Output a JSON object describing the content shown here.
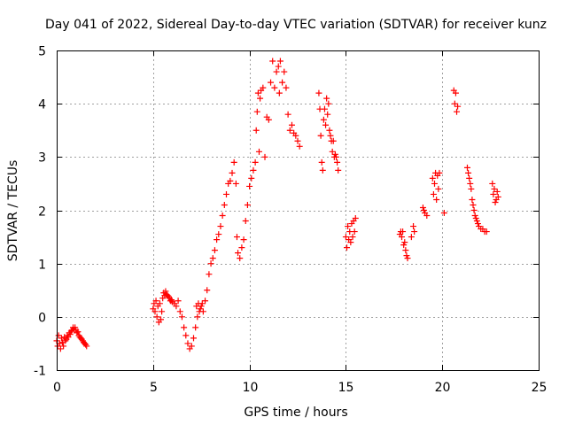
{
  "chart_data": {
    "type": "scatter",
    "title": "Day 041 of 2022, Sidereal Day-to-day VTEC variation (SDTVAR) for receiver kunz",
    "xlabel": "GPS time / hours",
    "ylabel": "SDTVAR / TECUs",
    "xlim": [
      0,
      25
    ],
    "ylim": [
      -1,
      5
    ],
    "xticks": [
      "0",
      "5",
      "10",
      "15",
      "20",
      "25"
    ],
    "yticks": [
      "-1",
      "0",
      "1",
      "2",
      "3",
      "4",
      "5"
    ],
    "grid": true,
    "marker": "plus",
    "color": "#ff0000",
    "series": [
      {
        "name": "SDTVAR",
        "segments": [
          [
            [
              0.0,
              -0.45
            ],
            [
              0.05,
              -0.55
            ],
            [
              0.1,
              -0.35
            ],
            [
              0.15,
              -0.5
            ],
            [
              0.2,
              -0.6
            ],
            [
              0.25,
              -0.4
            ],
            [
              0.3,
              -0.48
            ],
            [
              0.35,
              -0.55
            ],
            [
              0.4,
              -0.38
            ],
            [
              0.45,
              -0.45
            ],
            [
              0.5,
              -0.42
            ],
            [
              0.55,
              -0.35
            ],
            [
              0.6,
              -0.38
            ],
            [
              0.65,
              -0.3
            ],
            [
              0.7,
              -0.33
            ],
            [
              0.75,
              -0.27
            ],
            [
              0.8,
              -0.25
            ],
            [
              0.85,
              -0.2
            ],
            [
              0.9,
              -0.25
            ],
            [
              0.95,
              -0.2
            ],
            [
              1.0,
              -0.25
            ],
            [
              1.05,
              -0.3
            ],
            [
              1.1,
              -0.28
            ],
            [
              1.15,
              -0.35
            ],
            [
              1.2,
              -0.38
            ],
            [
              1.25,
              -0.4
            ],
            [
              1.3,
              -0.42
            ],
            [
              1.35,
              -0.45
            ],
            [
              1.4,
              -0.48
            ],
            [
              1.45,
              -0.5
            ],
            [
              1.5,
              -0.52
            ],
            [
              1.55,
              -0.55
            ]
          ],
          [
            [
              5.0,
              0.15
            ],
            [
              5.05,
              0.25
            ],
            [
              5.1,
              0.1
            ],
            [
              5.15,
              0.3
            ],
            [
              5.2,
              0.0
            ],
            [
              5.25,
              0.2
            ],
            [
              5.3,
              -0.1
            ],
            [
              5.35,
              0.25
            ],
            [
              5.4,
              -0.05
            ],
            [
              5.45,
              0.1
            ],
            [
              5.5,
              0.35
            ],
            [
              5.55,
              0.45
            ],
            [
              5.6,
              0.4
            ],
            [
              5.65,
              0.48
            ],
            [
              5.7,
              0.42
            ],
            [
              5.75,
              0.4
            ],
            [
              5.8,
              0.38
            ],
            [
              5.85,
              0.35
            ],
            [
              5.9,
              0.3
            ],
            [
              5.95,
              0.32
            ],
            [
              6.0,
              0.28
            ],
            [
              6.1,
              0.25
            ],
            [
              6.2,
              0.2
            ],
            [
              6.3,
              0.3
            ],
            [
              6.4,
              0.1
            ],
            [
              6.5,
              0.0
            ],
            [
              6.6,
              -0.2
            ],
            [
              6.7,
              -0.35
            ],
            [
              6.8,
              -0.5
            ],
            [
              6.9,
              -0.6
            ],
            [
              7.0,
              -0.55
            ],
            [
              7.1,
              -0.4
            ],
            [
              7.2,
              -0.2
            ],
            [
              7.25,
              0.2
            ],
            [
              7.3,
              0.0
            ],
            [
              7.35,
              0.25
            ],
            [
              7.4,
              0.1
            ],
            [
              7.45,
              0.15
            ],
            [
              7.5,
              0.2
            ],
            [
              7.55,
              0.25
            ],
            [
              7.6,
              0.1
            ],
            [
              7.7,
              0.3
            ],
            [
              7.8,
              0.5
            ],
            [
              7.9,
              0.8
            ],
            [
              8.0,
              1.0
            ],
            [
              8.1,
              1.1
            ],
            [
              8.2,
              1.25
            ],
            [
              8.3,
              1.45
            ],
            [
              8.4,
              1.55
            ],
            [
              8.5,
              1.7
            ],
            [
              8.6,
              1.9
            ],
            [
              8.7,
              2.1
            ],
            [
              8.8,
              2.3
            ],
            [
              8.9,
              2.5
            ],
            [
              9.0,
              2.55
            ],
            [
              9.1,
              2.7
            ],
            [
              9.2,
              2.9
            ],
            [
              9.3,
              2.5
            ],
            [
              9.35,
              1.5
            ],
            [
              9.4,
              1.2
            ],
            [
              9.5,
              1.1
            ],
            [
              9.6,
              1.3
            ],
            [
              9.7,
              1.45
            ],
            [
              9.8,
              1.8
            ],
            [
              9.9,
              2.1
            ],
            [
              10.0,
              2.45
            ],
            [
              10.1,
              2.6
            ],
            [
              10.2,
              2.75
            ],
            [
              10.3,
              2.9
            ],
            [
              10.35,
              3.5
            ],
            [
              10.4,
              3.85
            ],
            [
              10.45,
              4.2
            ],
            [
              10.5,
              3.1
            ],
            [
              10.55,
              4.1
            ],
            [
              10.6,
              4.25
            ],
            [
              10.7,
              4.3
            ],
            [
              10.8,
              3.0
            ],
            [
              10.9,
              3.75
            ],
            [
              11.0,
              3.7
            ],
            [
              11.1,
              4.4
            ],
            [
              11.2,
              4.8
            ],
            [
              11.3,
              4.3
            ],
            [
              11.4,
              4.6
            ],
            [
              11.5,
              4.7
            ],
            [
              11.55,
              4.2
            ],
            [
              11.6,
              4.8
            ],
            [
              11.7,
              4.4
            ],
            [
              11.8,
              4.6
            ],
            [
              11.9,
              4.3
            ],
            [
              12.0,
              3.8
            ],
            [
              12.1,
              3.5
            ],
            [
              12.2,
              3.6
            ],
            [
              12.3,
              3.45
            ],
            [
              12.4,
              3.4
            ],
            [
              12.5,
              3.3
            ],
            [
              12.6,
              3.2
            ]
          ],
          [
            [
              13.6,
              4.2
            ],
            [
              13.65,
              3.9
            ],
            [
              13.7,
              3.4
            ],
            [
              13.75,
              2.9
            ],
            [
              13.8,
              2.75
            ],
            [
              13.85,
              3.7
            ],
            [
              13.9,
              3.9
            ],
            [
              13.95,
              3.6
            ],
            [
              14.0,
              4.1
            ],
            [
              14.05,
              3.8
            ],
            [
              14.1,
              4.0
            ],
            [
              14.15,
              3.5
            ],
            [
              14.2,
              3.4
            ],
            [
              14.25,
              3.3
            ],
            [
              14.3,
              3.1
            ],
            [
              14.35,
              3.3
            ],
            [
              14.4,
              3.0
            ],
            [
              14.45,
              3.05
            ],
            [
              14.5,
              3.0
            ],
            [
              14.55,
              2.9
            ],
            [
              14.6,
              2.75
            ],
            [
              15.0,
              1.5
            ],
            [
              15.05,
              1.3
            ],
            [
              15.1,
              1.7
            ],
            [
              15.15,
              1.45
            ],
            [
              15.2,
              1.6
            ],
            [
              15.25,
              1.4
            ],
            [
              15.3,
              1.75
            ],
            [
              15.35,
              1.5
            ],
            [
              15.4,
              1.8
            ],
            [
              15.45,
              1.6
            ],
            [
              15.5,
              1.85
            ]
          ],
          [
            [
              17.8,
              1.55
            ],
            [
              17.85,
              1.6
            ],
            [
              17.9,
              1.5
            ],
            [
              17.95,
              1.6
            ],
            [
              18.0,
              1.35
            ],
            [
              18.05,
              1.4
            ],
            [
              18.1,
              1.25
            ],
            [
              18.15,
              1.15
            ],
            [
              18.2,
              1.1
            ],
            [
              18.4,
              1.5
            ],
            [
              18.5,
              1.7
            ],
            [
              18.55,
              1.6
            ],
            [
              19.0,
              2.05
            ],
            [
              19.05,
              2.0
            ],
            [
              19.1,
              1.95
            ],
            [
              19.2,
              1.9
            ],
            [
              19.5,
              2.6
            ],
            [
              19.55,
              2.3
            ],
            [
              19.6,
              2.5
            ],
            [
              19.65,
              2.7
            ],
            [
              19.7,
              2.2
            ],
            [
              19.75,
              2.65
            ],
            [
              19.8,
              2.4
            ],
            [
              19.85,
              2.7
            ],
            [
              20.1,
              1.95
            ],
            [
              20.6,
              4.25
            ],
            [
              20.65,
              4.0
            ],
            [
              20.7,
              4.2
            ],
            [
              20.75,
              3.85
            ],
            [
              20.8,
              3.95
            ]
          ],
          [
            [
              21.3,
              2.8
            ],
            [
              21.35,
              2.7
            ],
            [
              21.4,
              2.6
            ],
            [
              21.45,
              2.5
            ],
            [
              21.5,
              2.4
            ],
            [
              21.55,
              2.2
            ],
            [
              21.6,
              2.1
            ],
            [
              21.65,
              2.0
            ],
            [
              21.7,
              1.9
            ],
            [
              21.75,
              1.85
            ],
            [
              21.8,
              1.8
            ],
            [
              21.85,
              1.75
            ],
            [
              21.9,
              1.7
            ],
            [
              22.0,
              1.65
            ],
            [
              22.1,
              1.65
            ],
            [
              22.2,
              1.6
            ],
            [
              22.3,
              1.6
            ],
            [
              22.6,
              2.5
            ],
            [
              22.65,
              2.3
            ],
            [
              22.7,
              2.4
            ],
            [
              22.75,
              2.15
            ],
            [
              22.8,
              2.2
            ],
            [
              22.85,
              2.35
            ],
            [
              22.9,
              2.25
            ]
          ]
        ]
      }
    ]
  }
}
